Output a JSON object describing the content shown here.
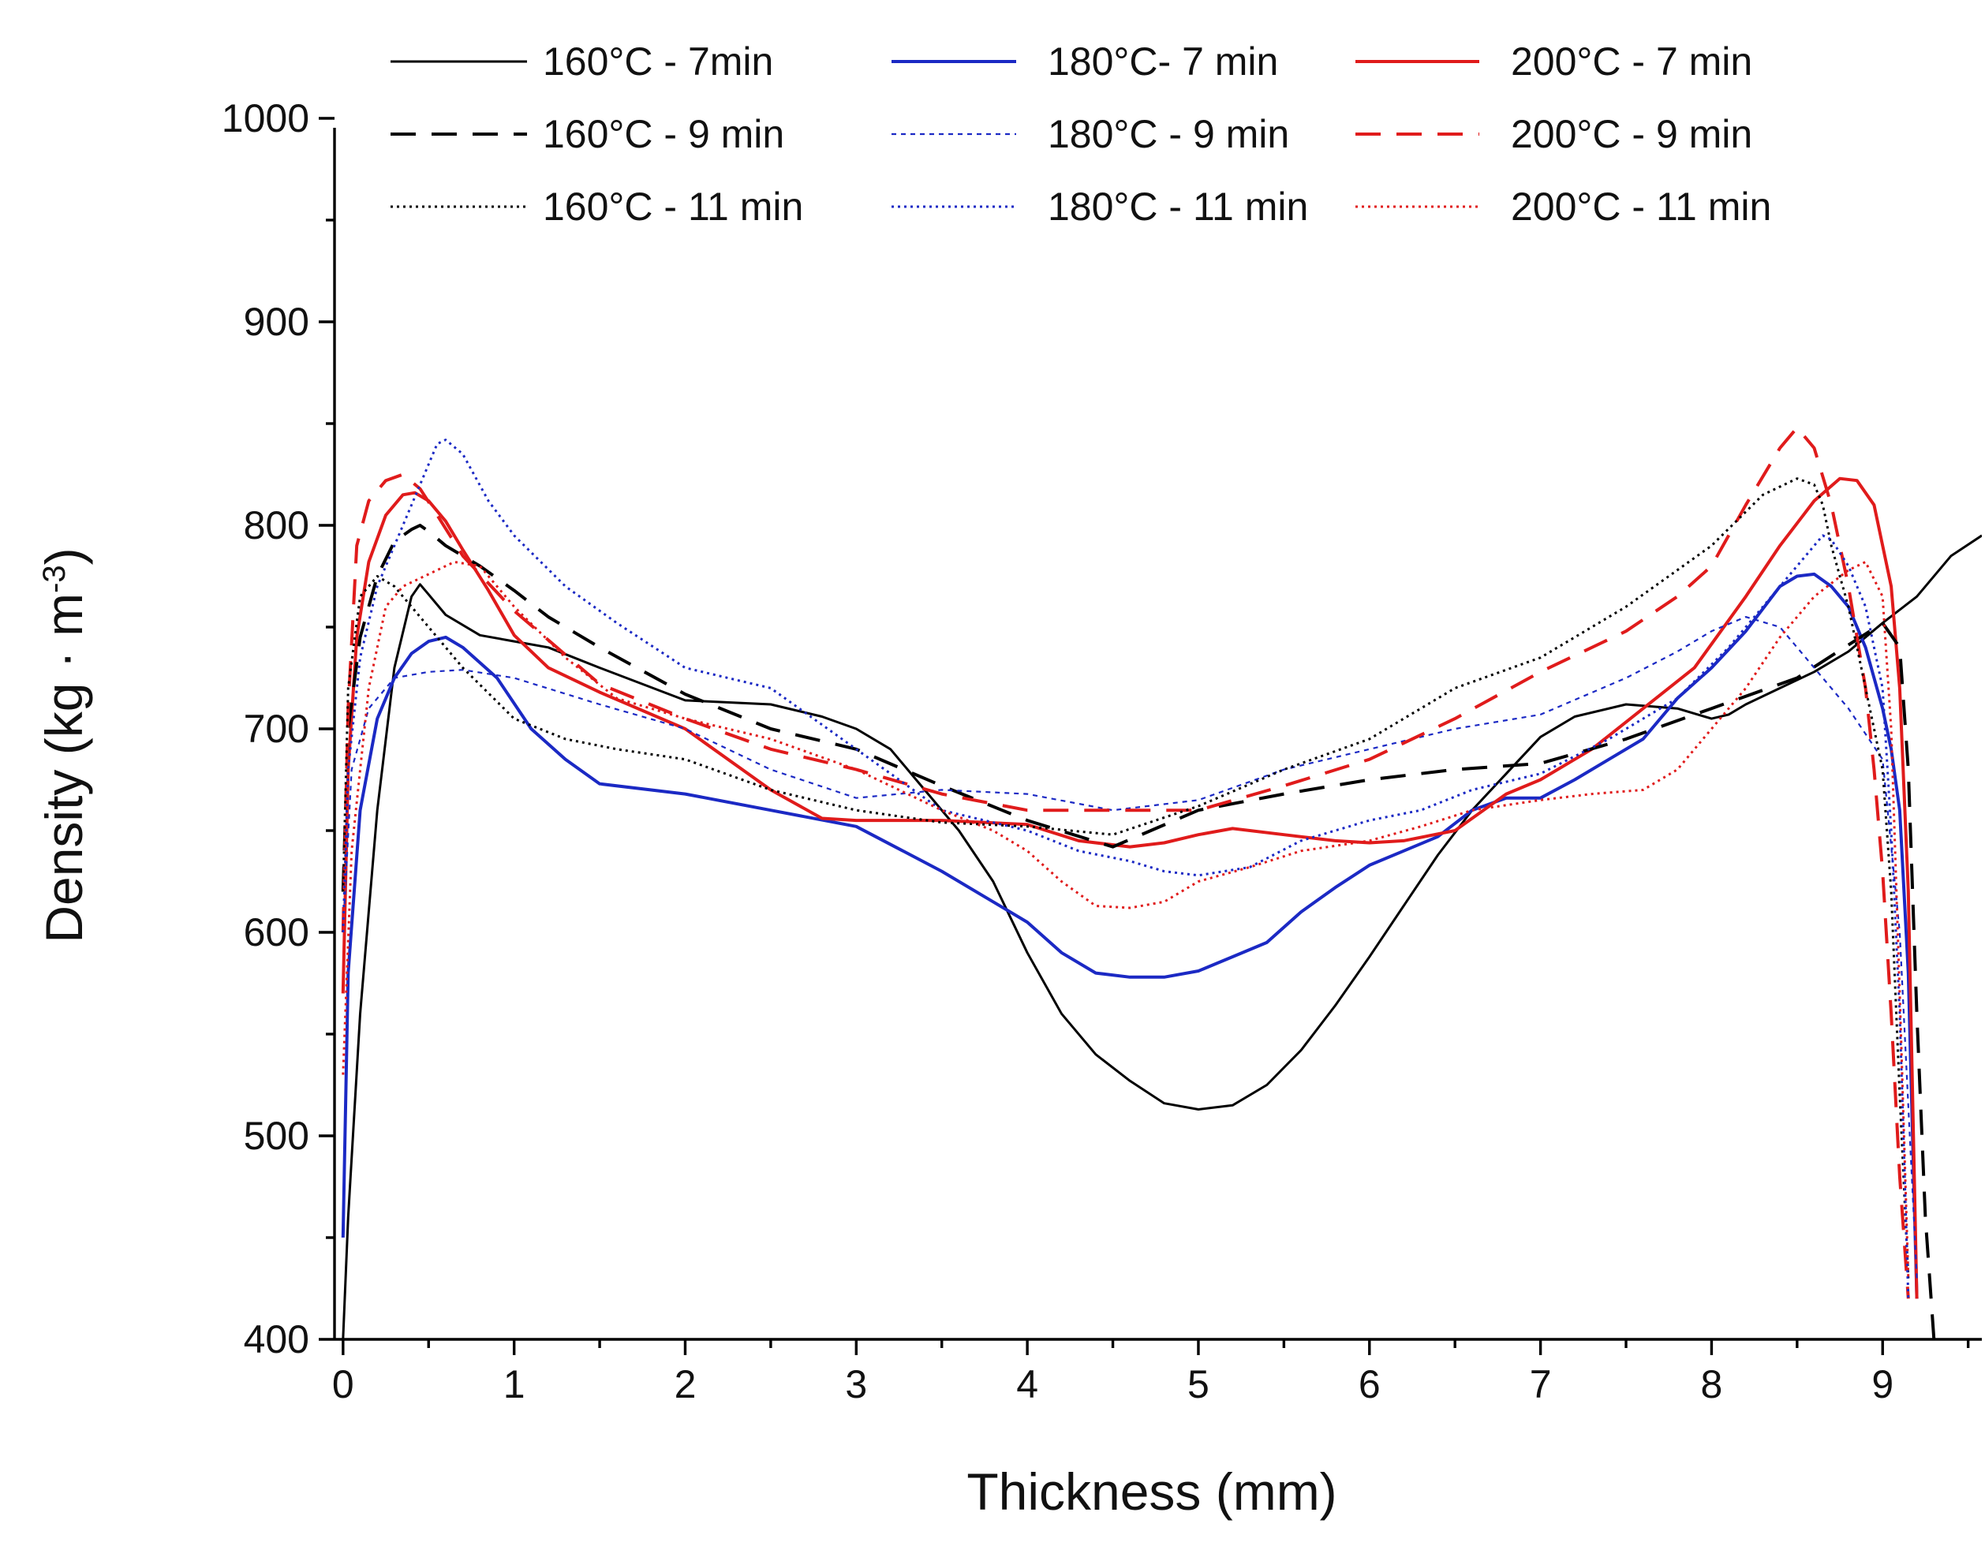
{
  "chart_data": {
    "type": "line",
    "xlabel": "Thickness (mm)",
    "ylabel": {
      "base": "Density (kg · m",
      "sup": "-3",
      "tail": ")"
    },
    "xlim": [
      -0.05,
      9.58
    ],
    "ylim": [
      400,
      1000
    ],
    "xticks": [
      0,
      1,
      2,
      3,
      4,
      5,
      6,
      7,
      8,
      9
    ],
    "xticklabels": [
      "0",
      "1",
      "2",
      "3",
      "4",
      "5",
      "6",
      "7",
      "8",
      "9"
    ],
    "yticks": [
      400,
      500,
      600,
      700,
      800,
      900,
      1000
    ],
    "yticklabels": [
      "400",
      "500",
      "600",
      "700",
      "800",
      "900",
      "1000"
    ],
    "legend_position": "top",
    "grid": false,
    "series": [
      {
        "name": "160°C - 7min",
        "color": "#000000",
        "dash": "solid",
        "width": 3,
        "x": [
          0,
          0.03,
          0.1,
          0.2,
          0.3,
          0.4,
          0.45,
          0.5,
          0.6,
          0.8,
          1.0,
          1.2,
          1.5,
          2.0,
          2.5,
          2.8,
          3.0,
          3.2,
          3.4,
          3.6,
          3.8,
          4.0,
          4.2,
          4.4,
          4.6,
          4.8,
          5.0,
          5.2,
          5.4,
          5.6,
          5.8,
          6.0,
          6.2,
          6.4,
          6.6,
          6.8,
          7.0,
          7.2,
          7.5,
          7.8,
          8.0,
          8.1,
          8.2,
          8.4,
          8.6,
          8.8,
          9.0,
          9.2,
          9.4,
          9.58
        ],
        "y": [
          400,
          460,
          560,
          660,
          730,
          765,
          771,
          766,
          756,
          746,
          743,
          740,
          730,
          714,
          712,
          706,
          700,
          690,
          670,
          650,
          625,
          590,
          560,
          540,
          527,
          516,
          513,
          515,
          525,
          542,
          564,
          588,
          613,
          638,
          660,
          678,
          696,
          706,
          712,
          710,
          705,
          707,
          712,
          720,
          728,
          738,
          752,
          765,
          785,
          795
        ]
      },
      {
        "name": "180°C- 7 min",
        "color": "#1b29c4",
        "dash": "solid",
        "width": 4,
        "x": [
          0,
          0.03,
          0.1,
          0.2,
          0.3,
          0.4,
          0.5,
          0.6,
          0.7,
          0.9,
          1.1,
          1.3,
          1.5,
          2.0,
          2.5,
          3.0,
          3.5,
          3.8,
          4.0,
          4.2,
          4.4,
          4.6,
          4.8,
          5.0,
          5.2,
          5.4,
          5.6,
          5.8,
          6.0,
          6.2,
          6.4,
          6.6,
          6.8,
          7.0,
          7.2,
          7.4,
          7.6,
          7.8,
          8.0,
          8.2,
          8.4,
          8.5,
          8.6,
          8.7,
          8.8,
          8.9,
          9.0,
          9.05,
          9.1,
          9.15,
          9.2
        ],
        "y": [
          450,
          580,
          660,
          705,
          725,
          737,
          743,
          745,
          740,
          725,
          700,
          685,
          673,
          668,
          660,
          652,
          630,
          615,
          605,
          590,
          580,
          578,
          578,
          581,
          588,
          595,
          610,
          622,
          633,
          640,
          647,
          660,
          666,
          666,
          675,
          685,
          695,
          715,
          730,
          748,
          770,
          775,
          776,
          770,
          760,
          740,
          710,
          690,
          660,
          580,
          420
        ]
      },
      {
        "name": "200°C - 7 min",
        "color": "#e01b1b",
        "dash": "solid",
        "width": 4,
        "x": [
          0,
          0.03,
          0.08,
          0.15,
          0.25,
          0.35,
          0.42,
          0.5,
          0.6,
          0.7,
          0.85,
          1.0,
          1.2,
          1.5,
          2.0,
          2.5,
          2.8,
          3.0,
          3.5,
          4.0,
          4.3,
          4.6,
          4.8,
          5.0,
          5.2,
          5.5,
          5.8,
          6.0,
          6.2,
          6.5,
          6.8,
          7.0,
          7.3,
          7.6,
          7.9,
          8.2,
          8.4,
          8.6,
          8.75,
          8.85,
          8.95,
          9.05,
          9.1,
          9.15,
          9.2
        ],
        "y": [
          570,
          680,
          745,
          782,
          805,
          815,
          816,
          812,
          802,
          788,
          768,
          746,
          730,
          718,
          700,
          670,
          656,
          655,
          655,
          653,
          645,
          642,
          644,
          648,
          651,
          648,
          645,
          644,
          645,
          650,
          668,
          675,
          690,
          710,
          730,
          765,
          790,
          812,
          823,
          822,
          810,
          770,
          720,
          620,
          420
        ]
      },
      {
        "name": "160°C - 9 min",
        "color": "#000000",
        "dash": "32,20",
        "width": 4,
        "x": [
          0,
          0.03,
          0.1,
          0.2,
          0.3,
          0.4,
          0.45,
          0.5,
          0.6,
          0.8,
          1.0,
          1.2,
          1.5,
          2.0,
          2.5,
          3.0,
          3.5,
          4.0,
          4.5,
          5.0,
          5.5,
          6.0,
          6.5,
          7.0,
          7.5,
          8.0,
          8.5,
          9.0,
          9.1,
          9.15,
          9.2,
          9.25,
          9.3
        ],
        "y": [
          620,
          700,
          745,
          775,
          792,
          798,
          800,
          797,
          790,
          780,
          768,
          755,
          740,
          717,
          700,
          690,
          672,
          655,
          642,
          660,
          668,
          675,
          680,
          683,
          695,
          710,
          725,
          752,
          740,
          680,
          560,
          460,
          400
        ]
      },
      {
        "name": "180°C - 9 min",
        "color": "#1b29c4",
        "dash": "6,6",
        "width": 2.2,
        "x": [
          0,
          0.05,
          0.15,
          0.3,
          0.5,
          0.7,
          1.0,
          1.5,
          2.0,
          2.5,
          3.0,
          3.5,
          4.0,
          4.5,
          5.0,
          5.5,
          6.0,
          6.5,
          7.0,
          7.5,
          7.8,
          8.0,
          8.2,
          8.4,
          8.6,
          8.8,
          9.0,
          9.1,
          9.2
        ],
        "y": [
          600,
          680,
          710,
          725,
          728,
          729,
          725,
          712,
          700,
          680,
          666,
          670,
          668,
          660,
          665,
          680,
          690,
          700,
          707,
          725,
          738,
          748,
          755,
          750,
          730,
          710,
          685,
          600,
          430
        ]
      },
      {
        "name": "200°C - 9 min",
        "color": "#e01b1b",
        "dash": "32,20",
        "width": 4,
        "x": [
          0,
          0.03,
          0.08,
          0.15,
          0.25,
          0.35,
          0.45,
          0.55,
          0.7,
          1.0,
          1.5,
          2.0,
          2.5,
          3.0,
          3.5,
          4.0,
          4.5,
          5.0,
          5.5,
          6.0,
          6.5,
          7.0,
          7.5,
          7.8,
          8.0,
          8.2,
          8.4,
          8.5,
          8.6,
          8.7,
          8.8,
          8.9,
          8.95,
          9.0,
          9.05,
          9.1,
          9.15
        ],
        "y": [
          600,
          710,
          790,
          812,
          822,
          825,
          818,
          805,
          785,
          758,
          722,
          705,
          690,
          680,
          668,
          660,
          660,
          660,
          672,
          685,
          705,
          728,
          748,
          765,
          780,
          810,
          838,
          848,
          838,
          810,
          770,
          720,
          680,
          630,
          560,
          480,
          420
        ]
      },
      {
        "name": "160°C - 11 min",
        "color": "#000000",
        "dash": "3,5",
        "width": 3,
        "x": [
          0,
          0.03,
          0.1,
          0.2,
          0.3,
          0.4,
          0.5,
          0.7,
          1.0,
          1.3,
          1.6,
          2.0,
          2.5,
          3.0,
          3.5,
          4.0,
          4.5,
          5.0,
          5.5,
          6.0,
          6.5,
          7.0,
          7.5,
          8.0,
          8.3,
          8.5,
          8.6,
          8.65,
          8.7,
          8.8,
          8.9,
          8.95,
          9.0,
          9.05,
          9.1,
          9.15
        ],
        "y": [
          620,
          720,
          765,
          775,
          770,
          760,
          750,
          730,
          705,
          695,
          690,
          685,
          670,
          660,
          654,
          652,
          648,
          662,
          680,
          695,
          720,
          735,
          760,
          790,
          815,
          823,
          820,
          810,
          790,
          760,
          720,
          700,
          680,
          620,
          520,
          430
        ]
      },
      {
        "name": "180°C - 11 min",
        "color": "#1b29c4",
        "dash": "3,5",
        "width": 3,
        "x": [
          0,
          0.03,
          0.1,
          0.2,
          0.3,
          0.4,
          0.5,
          0.55,
          0.6,
          0.7,
          0.85,
          1.0,
          1.3,
          1.6,
          2.0,
          2.5,
          3.0,
          3.5,
          4.0,
          4.3,
          4.6,
          4.8,
          5.0,
          5.3,
          5.6,
          6.0,
          6.3,
          6.6,
          7.0,
          7.4,
          7.8,
          8.1,
          8.3,
          8.5,
          8.6,
          8.65,
          8.7,
          8.8,
          8.9,
          9.0,
          9.05,
          9.1,
          9.15
        ],
        "y": [
          600,
          680,
          735,
          770,
          790,
          810,
          830,
          840,
          842,
          835,
          812,
          795,
          770,
          752,
          730,
          720,
          690,
          660,
          650,
          640,
          635,
          630,
          628,
          632,
          645,
          655,
          660,
          670,
          678,
          695,
          715,
          740,
          760,
          780,
          790,
          795,
          793,
          780,
          760,
          720,
          650,
          560,
          420
        ]
      },
      {
        "name": "200°C - 11 min",
        "color": "#e01b1b",
        "dash": "3,5",
        "width": 3,
        "x": [
          0,
          0.05,
          0.15,
          0.25,
          0.35,
          0.45,
          0.55,
          0.65,
          0.8,
          1.0,
          1.3,
          1.6,
          2.0,
          2.5,
          3.0,
          3.5,
          3.8,
          4.0,
          4.2,
          4.4,
          4.6,
          4.8,
          5.0,
          5.3,
          5.6,
          6.0,
          6.3,
          6.6,
          7.0,
          7.3,
          7.6,
          7.8,
          8.0,
          8.2,
          8.4,
          8.6,
          8.8,
          8.9,
          9.0,
          9.05,
          9.1,
          9.15
        ],
        "y": [
          530,
          640,
          720,
          760,
          770,
          774,
          778,
          782,
          780,
          760,
          735,
          715,
          705,
          695,
          680,
          660,
          650,
          640,
          625,
          613,
          612,
          615,
          625,
          632,
          640,
          645,
          652,
          660,
          665,
          668,
          670,
          680,
          700,
          720,
          745,
          765,
          778,
          782,
          765,
          700,
          570,
          430
        ]
      }
    ]
  }
}
